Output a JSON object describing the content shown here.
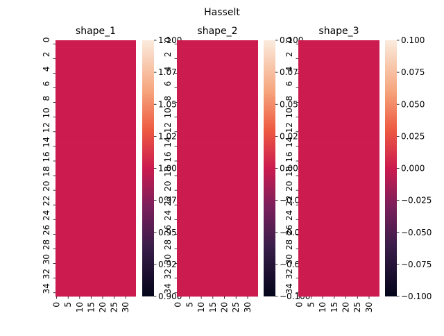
{
  "suptitle": "Hasselt",
  "chart_data": [
    {
      "type": "heatmap",
      "title": "shape_1",
      "n_rows": 35,
      "n_cols": 35,
      "y_ticks": [
        "0",
        "2",
        "4",
        "6",
        "8",
        "10",
        "12",
        "14",
        "16",
        "18",
        "20",
        "22",
        "24",
        "26",
        "28",
        "30",
        "32",
        "34"
      ],
      "x_ticks": [
        "0",
        "5",
        "10",
        "15",
        "20",
        "25",
        "30"
      ],
      "fill_value": 1.0,
      "cell_color": "#cb1b4f",
      "colorbar": {
        "min": 0.9,
        "max": 1.1,
        "ticks": [
          "0.900",
          "0.925",
          "0.950",
          "0.975",
          "1.000",
          "1.025",
          "1.050",
          "1.075",
          "1.100"
        ]
      }
    },
    {
      "type": "heatmap",
      "title": "shape_2",
      "n_rows": 35,
      "n_cols": 35,
      "y_ticks": [
        "0",
        "2",
        "4",
        "6",
        "8",
        "10",
        "12",
        "14",
        "16",
        "18",
        "20",
        "22",
        "24",
        "26",
        "28",
        "30",
        "32",
        "34"
      ],
      "x_ticks": [
        "0",
        "5",
        "10",
        "15",
        "20",
        "25",
        "30"
      ],
      "fill_value": 0.0,
      "cell_color": "#cb1b4f",
      "colorbar": {
        "min": -0.1,
        "max": 0.1,
        "ticks": [
          "−0.100",
          "−0.075",
          "−0.050",
          "−0.025",
          "0.000",
          "0.025",
          "0.050",
          "0.075",
          "0.100"
        ]
      }
    },
    {
      "type": "heatmap",
      "title": "shape_3",
      "n_rows": 35,
      "n_cols": 35,
      "y_ticks": [
        "0",
        "2",
        "4",
        "6",
        "8",
        "10",
        "12",
        "14",
        "16",
        "18",
        "20",
        "22",
        "24",
        "26",
        "28",
        "30",
        "32",
        "34"
      ],
      "x_ticks": [
        "0",
        "5",
        "10",
        "15",
        "20",
        "25",
        "30"
      ],
      "fill_value": 0.0,
      "cell_color": "#cb1b4f",
      "colorbar": {
        "min": -0.1,
        "max": 0.1,
        "ticks": [
          "−0.100",
          "−0.075",
          "−0.050",
          "−0.025",
          "0.000",
          "0.025",
          "0.050",
          "0.075",
          "0.100"
        ]
      }
    }
  ]
}
